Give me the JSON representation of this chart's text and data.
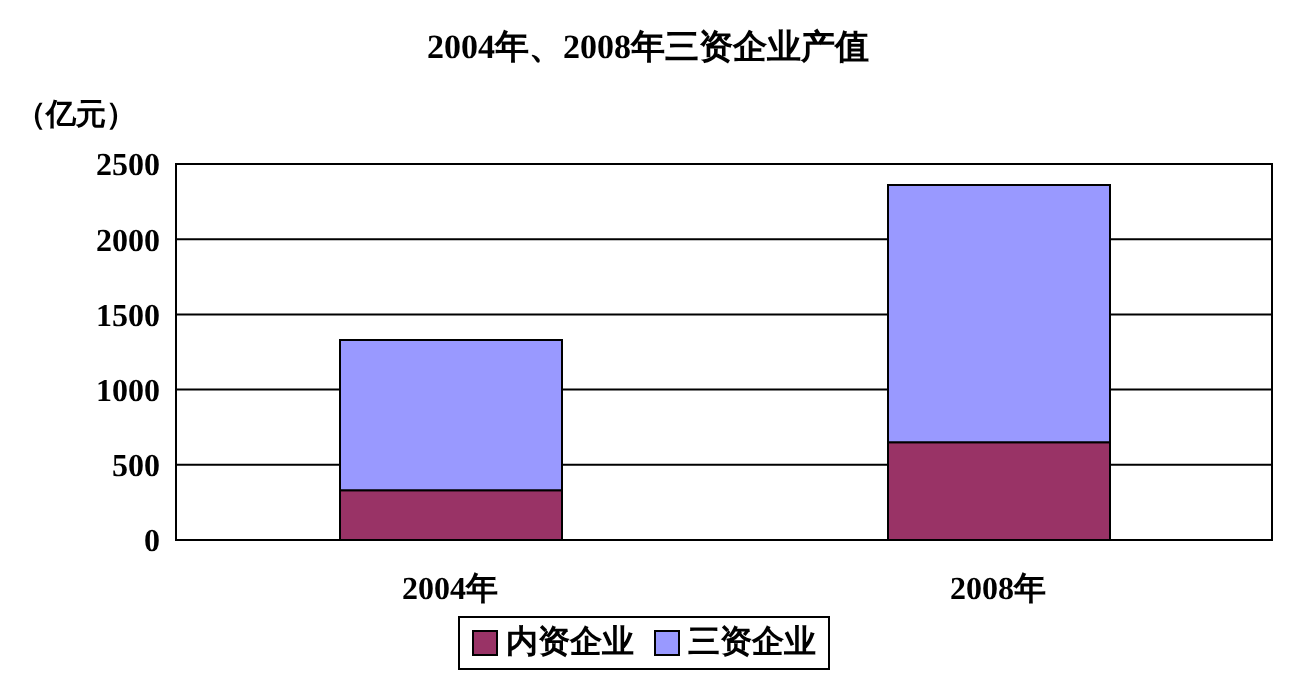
{
  "chart_data": {
    "type": "bar",
    "title": "2004年、2008年三资企业产值",
    "ylabel": "（亿元）",
    "categories": [
      "2004年",
      "2008年"
    ],
    "stacked": true,
    "series": [
      {
        "name": "内资企业",
        "color": "#993366",
        "values": [
          330,
          650
        ]
      },
      {
        "name": "三资企业",
        "color": "#9999ff",
        "values": [
          1000,
          1710
        ]
      }
    ],
    "ylim": [
      0,
      2500
    ],
    "yticks": [
      0,
      500,
      1000,
      1500,
      2000,
      2500
    ],
    "grid": "y",
    "legend": "bottom"
  }
}
